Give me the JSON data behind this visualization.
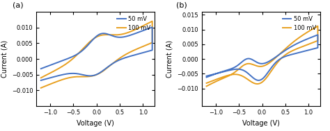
{
  "panel_a_label": "(a)",
  "panel_b_label": "(b)",
  "legend_50mV": "50 mV",
  "legend_100mV": "100 mV",
  "color_50mV": "#4472C4",
  "color_100mV": "#E8A020",
  "xlabel": "Voltage (V)",
  "ylabel": "Current (A)",
  "xlim": [
    -1.3,
    1.25
  ],
  "ylim_a": [
    -0.015,
    0.015
  ],
  "ylim_b": [
    -0.016,
    0.016
  ],
  "xticks": [
    -1.0,
    -0.5,
    0.0,
    0.5,
    1.0
  ],
  "yticks_a": [
    -0.01,
    -0.005,
    0.0,
    0.005,
    0.01
  ],
  "yticks_b": [
    -0.01,
    -0.005,
    0.0,
    0.005,
    0.01,
    0.015
  ],
  "line_width": 1.4
}
